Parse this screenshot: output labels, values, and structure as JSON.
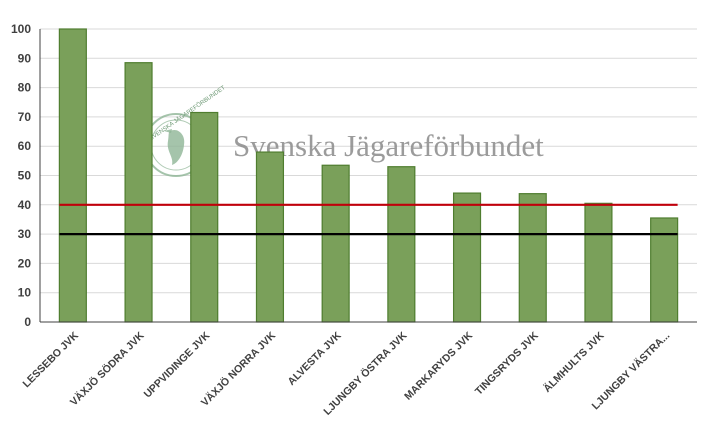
{
  "chart_data": {
    "type": "bar",
    "categories": [
      "LESSEBO JVK",
      "VÄXJÖ SÖDRA JVK",
      "UPPVIDINGE JVK",
      "VÄXJÖ NORRA JVK",
      "ALVESTA JVK",
      "LJUNGBY ÖSTRA JVK",
      "MARKARYDS JVK",
      "TINGSRYDS JVK",
      "ÄLMHULTS JVK",
      "LJUNGBY VÄSTRA..."
    ],
    "values": [
      100,
      88.5,
      71.5,
      58,
      53.5,
      53,
      44,
      43.8,
      40.5,
      35.5
    ],
    "reference_lines": [
      {
        "value": 40,
        "color": "#c0000b"
      },
      {
        "value": 30,
        "color": "#000000"
      }
    ],
    "ylim": [
      0,
      100
    ],
    "yticks": [
      0,
      10,
      20,
      30,
      40,
      50,
      60,
      70,
      80,
      90,
      100
    ],
    "grid": true,
    "bar_color": "#7aa05a",
    "bar_edge_color": "#4f7d2f",
    "watermark": "Svenska Jägareförbundet",
    "title": "",
    "xlabel": "",
    "ylabel": ""
  }
}
